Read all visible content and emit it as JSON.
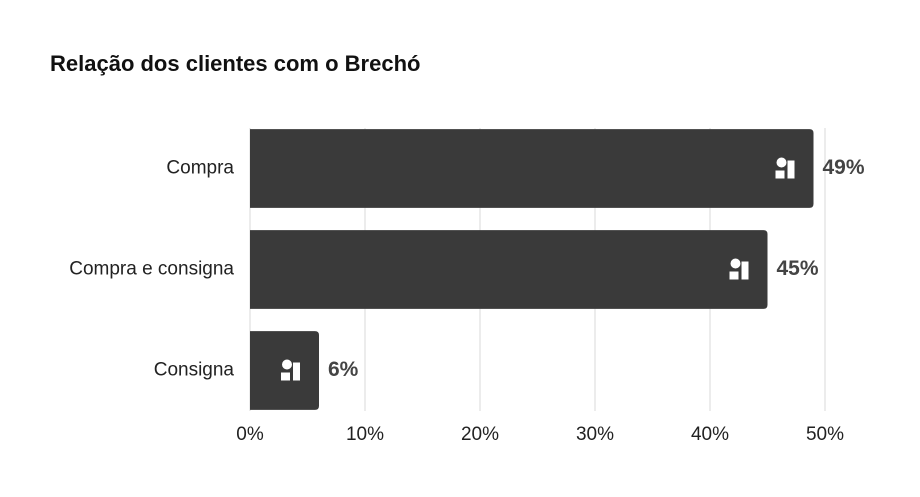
{
  "chart_data": {
    "type": "barh",
    "title": "Relação dos clientes com o Brechó",
    "categories": [
      "Compra",
      "Compra e consigna",
      "Consigna"
    ],
    "values": [
      49,
      45,
      6
    ],
    "value_labels": [
      "49%",
      "45%",
      "6%"
    ],
    "color": "#3a3a3a",
    "xlim": [
      0,
      50
    ],
    "xticks": [
      {
        "value": 0,
        "label": "0%"
      },
      {
        "value": 10,
        "label": "10%"
      },
      {
        "value": 20,
        "label": "20%"
      },
      {
        "value": 30,
        "label": "30%"
      },
      {
        "value": 40,
        "label": "40%"
      },
      {
        "value": 50,
        "label": "50%"
      }
    ],
    "grid": true
  }
}
